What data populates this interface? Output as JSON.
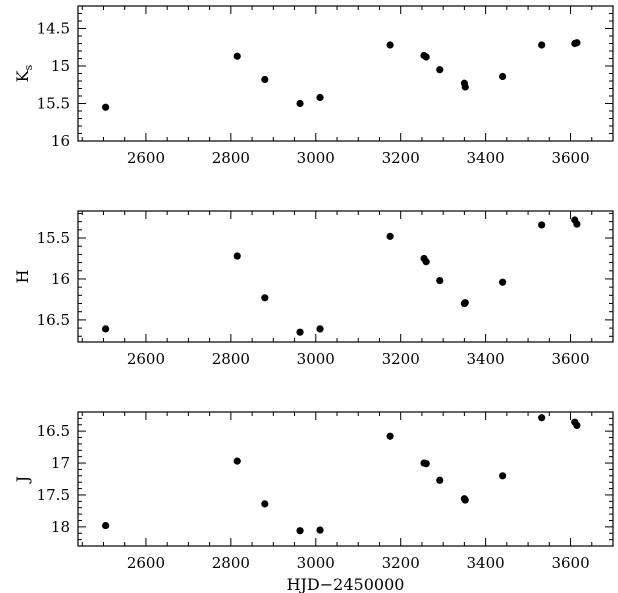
{
  "chart_data": [
    {
      "type": "scatter",
      "panel": "Ks",
      "ylabel": "K",
      "ylabel_sub": "s",
      "xlabel": "",
      "xlim": [
        2440,
        3700
      ],
      "ylim": [
        16.0,
        14.2
      ],
      "y_inverted": true,
      "x_ticks": [
        2600,
        2800,
        3000,
        3200,
        3400,
        3600
      ],
      "x_tick_labels": [
        "2600",
        "2800",
        "3000",
        "3200",
        "3400",
        "3600"
      ],
      "y_ticks": [
        14.5,
        15,
        15.5,
        16
      ],
      "y_tick_labels": [
        "14.5",
        "15",
        "15.5",
        "16"
      ],
      "grid": false,
      "series": [
        {
          "x": [
            2505,
            2815,
            2880,
            2963,
            3010,
            3175,
            3255,
            3260,
            3292,
            3350,
            3352,
            3440,
            3532,
            3610,
            3615
          ],
          "y": [
            15.55,
            14.87,
            15.18,
            15.5,
            15.42,
            14.72,
            14.86,
            14.88,
            15.05,
            15.23,
            15.28,
            15.14,
            14.72,
            14.7,
            14.69
          ]
        }
      ]
    },
    {
      "type": "scatter",
      "panel": "H",
      "ylabel": "H",
      "xlabel": "",
      "xlim": [
        2440,
        3700
      ],
      "ylim": [
        16.77,
        15.17
      ],
      "y_inverted": true,
      "x_ticks": [
        2600,
        2800,
        3000,
        3200,
        3400,
        3600
      ],
      "x_tick_labels": [
        "2600",
        "2800",
        "3000",
        "3200",
        "3400",
        "3600"
      ],
      "y_ticks": [
        15.5,
        16,
        16.5
      ],
      "y_tick_labels": [
        "15.5",
        "16",
        "16.5"
      ],
      "grid": false,
      "series": [
        {
          "x": [
            2505,
            2815,
            2880,
            2963,
            3010,
            3175,
            3255,
            3260,
            3292,
            3350,
            3352,
            3440,
            3532,
            3610,
            3615
          ],
          "y": [
            16.61,
            15.72,
            16.23,
            16.65,
            16.61,
            15.48,
            15.75,
            15.79,
            16.02,
            16.3,
            16.29,
            16.04,
            15.34,
            15.28,
            15.33
          ]
        }
      ]
    },
    {
      "type": "scatter",
      "panel": "J",
      "ylabel": "J",
      "xlabel": "HJD−2450000",
      "xlim": [
        2440,
        3700
      ],
      "ylim": [
        18.3,
        16.2
      ],
      "y_inverted": true,
      "x_ticks": [
        2600,
        2800,
        3000,
        3200,
        3400,
        3600
      ],
      "x_tick_labels": [
        "2600",
        "2800",
        "3000",
        "3200",
        "3400",
        "3600"
      ],
      "y_ticks": [
        16.5,
        17,
        17.5,
        18
      ],
      "y_tick_labels": [
        "16.5",
        "17",
        "17.5",
        "18"
      ],
      "grid": false,
      "series": [
        {
          "x": [
            2505,
            2815,
            2880,
            2963,
            3010,
            3175,
            3255,
            3260,
            3292,
            3350,
            3352,
            3440,
            3532,
            3610,
            3615
          ],
          "y": [
            17.98,
            16.97,
            17.64,
            18.06,
            18.05,
            16.58,
            17.0,
            17.01,
            17.27,
            17.56,
            17.58,
            17.2,
            16.29,
            16.36,
            16.41
          ]
        }
      ]
    }
  ]
}
